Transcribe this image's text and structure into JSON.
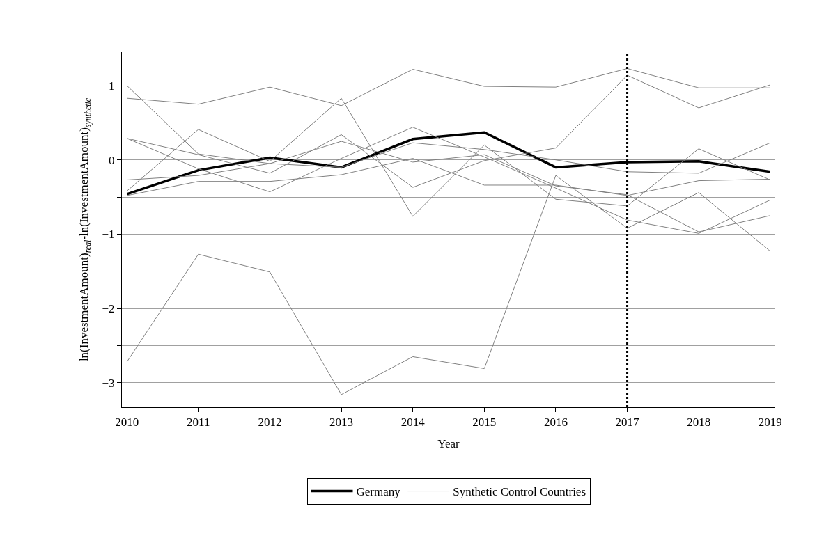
{
  "chart_data": {
    "type": "line",
    "xlabel": "Year",
    "ylabel": "ln(InvestmentAmount)$_{real}$-ln(InvestmentAmount)$_{synthetic}$",
    "x": [
      2010,
      2011,
      2012,
      2013,
      2014,
      2015,
      2016,
      2017,
      2018,
      2019
    ],
    "xlim": [
      2009.93,
      2019.07
    ],
    "xticks": [
      2010,
      2011,
      2012,
      2013,
      2014,
      2015,
      2016,
      2017,
      2018,
      2019
    ],
    "ylim": [
      -3.33,
      1.45
    ],
    "yticks": [
      -3,
      {
        "value": -2.5,
        "label": null
      },
      -2,
      {
        "value": -1.5,
        "label": null
      },
      -1,
      {
        "value": -0.5,
        "label": null
      },
      0,
      {
        "value": 0.5,
        "label": null
      },
      1
    ],
    "grid": "y",
    "legend": "bottom",
    "marker": "none",
    "line_style": "solid",
    "ref_lines": [
      {
        "axis": "x",
        "value": 2017,
        "label": null,
        "color": "#000000",
        "line_style": "dotted"
      }
    ],
    "series": [
      {
        "name": "Germany",
        "color": "#000000",
        "values": [
          -0.46,
          -0.14,
          0.03,
          -0.1,
          0.28,
          0.37,
          -0.1,
          -0.03,
          -0.02,
          -0.16
        ]
      },
      {
        "name": "Synthetic Control Countries",
        "color": "#808080",
        "values": [
          0.83,
          0.75,
          0.98,
          0.73,
          1.22,
          0.99,
          0.98,
          1.23,
          0.97,
          0.97
        ]
      },
      {
        "color": "#808080",
        "values": [
          1.0,
          0.08,
          -0.05,
          0.25,
          -0.03,
          0.07,
          -0.35,
          -0.47,
          -0.97,
          -0.75
        ]
      },
      {
        "color": "#808080",
        "values": [
          -0.42,
          0.41,
          -0.02,
          0.83,
          -0.76,
          0.2,
          -0.53,
          -0.62,
          0.15,
          -0.27
        ]
      },
      {
        "color": "#808080",
        "values": [
          -2.72,
          -1.27,
          -1.51,
          -3.16,
          -2.65,
          -2.81,
          -0.21,
          -0.92,
          -0.44,
          -1.23
        ]
      },
      {
        "color": "#808080",
        "values": [
          0.29,
          0.07,
          -0.18,
          0.34,
          -0.37,
          -0.01,
          0.16,
          1.14,
          0.7,
          1.01
        ]
      },
      {
        "color": "#808080",
        "values": [
          0.29,
          -0.12,
          -0.43,
          0.02,
          0.44,
          0.04,
          -0.38,
          -0.81,
          -0.99,
          -0.54
        ]
      },
      {
        "color": "#808080",
        "values": [
          -0.27,
          -0.21,
          -0.05,
          -0.1,
          0.23,
          0.14,
          0.0,
          -0.16,
          -0.18,
          0.23
        ]
      },
      {
        "color": "#808080",
        "values": [
          -0.48,
          -0.29,
          -0.29,
          -0.2,
          0.02,
          -0.34,
          -0.34,
          -0.48,
          -0.28,
          -0.26
        ]
      }
    ]
  }
}
